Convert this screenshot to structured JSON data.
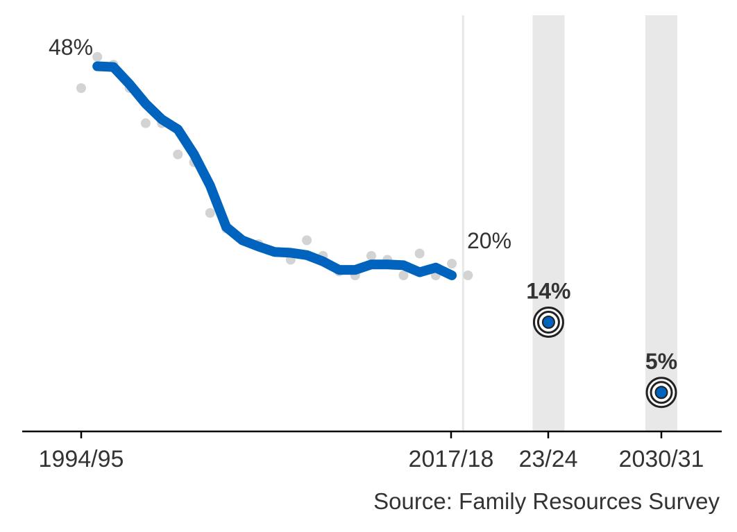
{
  "chart_data": {
    "type": "line",
    "title": "",
    "xlabel": "",
    "ylabel": "",
    "x_tick_labels": [
      "1994/95",
      "2017/18",
      "23/24",
      "2030/31"
    ],
    "ylim": [
      0,
      52
    ],
    "grid": false,
    "source": "Source: Family Resources Survey",
    "colors": {
      "trend": "#0063be",
      "points": "#d3d3d3",
      "target_band": "#e8e8e8",
      "target_marker": "#0063be",
      "axis": "#000000",
      "text": "#333333"
    },
    "series": [
      {
        "values": [
          [
            1994,
            44
          ],
          [
            1995,
            48
          ],
          [
            1996,
            47
          ],
          [
            1997,
            44
          ],
          [
            1998,
            39.5
          ],
          [
            1999,
            39.5
          ],
          [
            2000,
            35.5
          ],
          [
            2001,
            34.5
          ],
          [
            2002,
            28
          ],
          [
            2003,
            26
          ],
          [
            2004,
            24.5
          ],
          [
            2005,
            24
          ],
          [
            2006,
            23
          ],
          [
            2007,
            22
          ],
          [
            2008,
            24.5
          ],
          [
            2009,
            22.5
          ],
          [
            2010,
            20.5
          ],
          [
            2011,
            20
          ],
          [
            2012,
            22.5
          ],
          [
            2013,
            22
          ],
          [
            2014,
            20
          ],
          [
            2015,
            22.8
          ],
          [
            2016,
            20
          ],
          [
            2017,
            21.5
          ],
          [
            2018,
            20
          ]
        ]
      },
      {
        "values": [
          [
            1995,
            46.8
          ],
          [
            1996,
            46.7
          ],
          [
            1997,
            44.5
          ],
          [
            1998,
            42
          ],
          [
            1999,
            40
          ],
          [
            2000,
            38.7
          ],
          [
            2001,
            35.5
          ],
          [
            2002,
            31.5
          ],
          [
            2003,
            26.2
          ],
          [
            2004,
            24.5
          ],
          [
            2005,
            23.7
          ],
          [
            2006,
            23
          ],
          [
            2007,
            22.9
          ],
          [
            2008,
            22.6
          ],
          [
            2009,
            21.8
          ],
          [
            2010,
            20.7
          ],
          [
            2011,
            20.7
          ],
          [
            2012,
            21.4
          ],
          [
            2013,
            21.4
          ],
          [
            2014,
            21.3
          ],
          [
            2015,
            20.4
          ],
          [
            2016,
            21
          ],
          [
            2017,
            20
          ]
        ]
      }
    ],
    "annotations": {
      "start": "48%",
      "end": "20%"
    },
    "targets": [
      {
        "x": 2023,
        "value": 14,
        "label": "14%"
      },
      {
        "x": 2030,
        "value": 5,
        "label": "5%"
      }
    ]
  }
}
